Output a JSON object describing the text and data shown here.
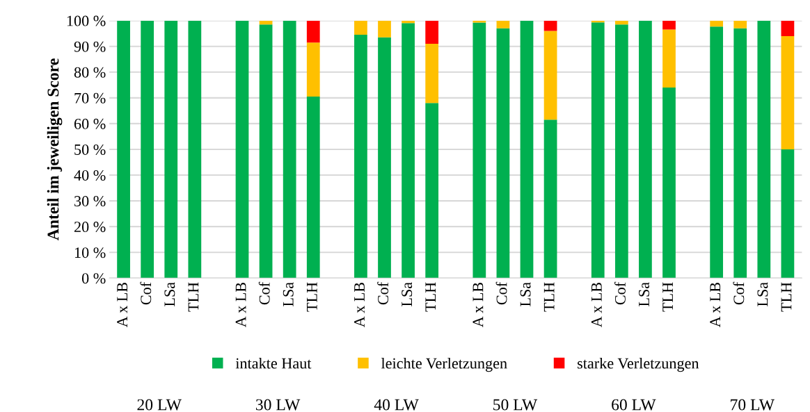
{
  "chart_data": {
    "type": "bar",
    "stacked": true,
    "ylabel": "Anteil im jeweiligen Score",
    "categories": [
      "A x LB",
      "Cof",
      "LSa",
      "TLH",
      null,
      "A x LB",
      "Cof",
      "LSa",
      "TLH",
      null,
      "A x LB",
      "Cof",
      "LSa",
      "TLH",
      null,
      "A x LB",
      "Cof",
      "LSa",
      "TLH",
      null,
      "A x LB",
      "Cof",
      "LSa",
      "TLH",
      null,
      "A x LB",
      "Cof",
      "LSa",
      "TLH"
    ],
    "series": [
      {
        "name": "intakte Haut",
        "color": "#00b050",
        "values": [
          100,
          100,
          100,
          100,
          null,
          100,
          98.5,
          100,
          70.5,
          null,
          94.5,
          93.5,
          99,
          68,
          null,
          99.2,
          97,
          100,
          61.5,
          null,
          99.3,
          98.5,
          100,
          74,
          null,
          97.7,
          97,
          100,
          50
        ]
      },
      {
        "name": "leichte Verletzungen",
        "color": "#ffc000",
        "values": [
          0,
          0,
          0,
          0,
          null,
          0,
          1.5,
          0,
          21,
          null,
          5.5,
          6.5,
          1,
          23,
          null,
          0.8,
          3,
          0,
          34.5,
          null,
          0.7,
          1.5,
          0,
          22.5,
          null,
          2.3,
          3,
          0,
          44
        ]
      },
      {
        "name": "starke Verletzungen",
        "color": "#ff0000",
        "values": [
          0,
          0,
          0,
          0,
          null,
          0,
          0,
          0,
          8.5,
          null,
          0,
          0,
          0,
          9,
          null,
          0,
          0,
          0,
          4,
          null,
          0,
          0,
          0,
          3.5,
          null,
          0,
          0,
          0,
          6
        ]
      }
    ],
    "annotations": [
      "20 LW",
      "30 LW",
      "40 LW",
      "50 LW",
      "60 LW",
      "70 LW"
    ],
    "ylim": [
      0,
      100
    ],
    "yticks": [
      {
        "value": 0,
        "label": "0 %"
      },
      {
        "value": 10,
        "label": "10 %"
      },
      {
        "value": 20,
        "label": "20 %"
      },
      {
        "value": 30,
        "label": "30 %"
      },
      {
        "value": 40,
        "label": "40 %"
      },
      {
        "value": 50,
        "label": "50 %"
      },
      {
        "value": 60,
        "label": "60 %"
      },
      {
        "value": 70,
        "label": "70 %"
      },
      {
        "value": 80,
        "label": "80 %"
      },
      {
        "value": 90,
        "label": "90 %"
      },
      {
        "value": 100,
        "label": "100 %"
      }
    ],
    "grid": "y",
    "legend": "bottom"
  }
}
